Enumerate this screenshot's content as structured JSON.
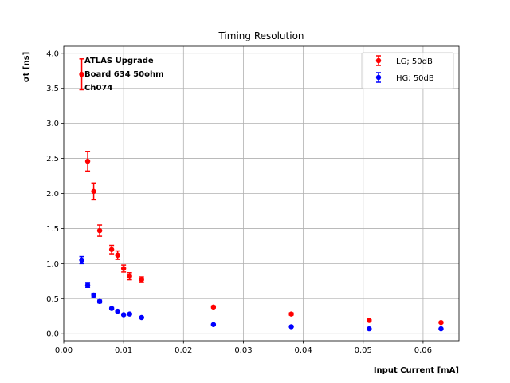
{
  "chart_data": {
    "type": "scatter",
    "title": "Timing Resolution",
    "xlabel": "Input Current [mA]",
    "ylabel": "σt [ns]",
    "xlim": [
      0.0,
      0.066
    ],
    "ylim": [
      -0.1,
      4.1
    ],
    "xticks": [
      0.0,
      0.01,
      0.02,
      0.03,
      0.04,
      0.05,
      0.06
    ],
    "xtick_labels": [
      "0.00",
      "0.01",
      "0.02",
      "0.03",
      "0.04",
      "0.05",
      "0.06"
    ],
    "yticks": [
      0.0,
      0.5,
      1.0,
      1.5,
      2.0,
      2.5,
      3.0,
      3.5,
      4.0
    ],
    "ytick_labels": [
      "0.0",
      "0.5",
      "1.0",
      "1.5",
      "2.0",
      "2.5",
      "3.0",
      "3.5",
      "4.0"
    ],
    "grid": true,
    "legend_position": "top-right",
    "annotation_lines": [
      "ATLAS Upgrade",
      "Board 634 50ohm",
      "Ch074"
    ],
    "series": [
      {
        "name": "LG; 50dB",
        "color": "#ff0000",
        "x": [
          0.003,
          0.004,
          0.005,
          0.006,
          0.008,
          0.009,
          0.01,
          0.011,
          0.013,
          0.025,
          0.038,
          0.051,
          0.063
        ],
        "y": [
          3.7,
          2.46,
          2.03,
          1.47,
          1.2,
          1.12,
          0.93,
          0.82,
          0.77,
          0.38,
          0.28,
          0.19,
          0.16
        ],
        "yerr": [
          0.22,
          0.14,
          0.12,
          0.08,
          0.06,
          0.06,
          0.05,
          0.05,
          0.04,
          0.015,
          0.015,
          0.01,
          0.01
        ]
      },
      {
        "name": "HG; 50dB",
        "color": "#0000ff",
        "x": [
          0.003,
          0.004,
          0.005,
          0.006,
          0.008,
          0.009,
          0.01,
          0.011,
          0.013,
          0.025,
          0.038,
          0.051,
          0.063
        ],
        "y": [
          1.05,
          0.69,
          0.55,
          0.46,
          0.36,
          0.32,
          0.27,
          0.28,
          0.23,
          0.13,
          0.1,
          0.07,
          0.07
        ],
        "yerr": [
          0.05,
          0.03,
          0.025,
          0.02,
          0.015,
          0.015,
          0.012,
          0.012,
          0.01,
          0.008,
          0.006,
          0.005,
          0.005
        ]
      }
    ]
  }
}
